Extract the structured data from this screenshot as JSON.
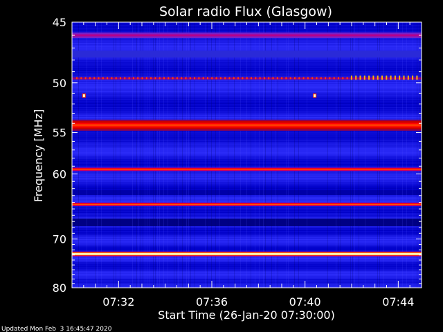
{
  "chart_data": {
    "type": "heatmap",
    "title": "Solar radio Flux (Glasgow)",
    "xlabel": "Start Time (26-Jan-20 07:30:00)",
    "ylabel": "Frequency [MHz]",
    "xlim_minutes": [
      0,
      15
    ],
    "ylim": [
      45,
      80
    ],
    "y_scale": "reciprocal",
    "x_ticks": [
      {
        "label": "07:32",
        "minute": 2
      },
      {
        "label": "07:36",
        "minute": 6
      },
      {
        "label": "07:40",
        "minute": 10
      },
      {
        "label": "07:44",
        "minute": 14
      }
    ],
    "y_ticks": [
      45,
      50,
      55,
      60,
      70,
      80
    ],
    "bands": [
      {
        "freq": 46.0,
        "level": 0.9
      },
      {
        "freq": 47.5,
        "level": 0.55
      },
      {
        "freq": 49.6,
        "level": 1.3
      },
      {
        "freq": 54.2,
        "level": 2.3
      },
      {
        "freq": 59.4,
        "level": 2.6
      },
      {
        "freq": 64.3,
        "level": 2.6
      },
      {
        "freq": 72.8,
        "level": 3.0
      }
    ],
    "bright_spots": [
      {
        "minute": 0.5,
        "freq": 51.2
      },
      {
        "minute": 10.4,
        "freq": 51.2
      }
    ],
    "colormap": [
      "#000000",
      "#0000c8",
      "#3232ff",
      "#b4008c",
      "#ff0000",
      "#ffdc00",
      "#ffffff"
    ],
    "footer": "Updated Mon Feb  3 16:45:47 2020"
  }
}
